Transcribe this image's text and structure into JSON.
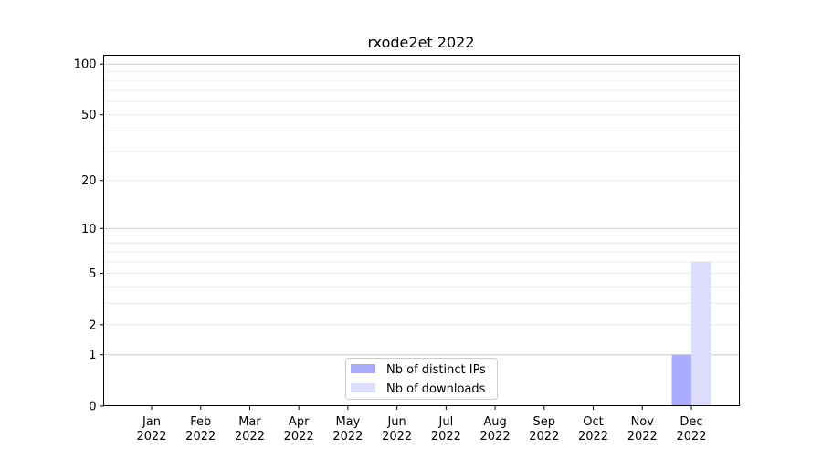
{
  "chart_data": {
    "type": "bar",
    "title": "rxode2et 2022",
    "xlabel": "",
    "ylabel": "",
    "yscale": "log(1+y)",
    "ylim": [
      0,
      113
    ],
    "yticks": [
      0,
      1,
      2,
      5,
      10,
      20,
      50,
      100
    ],
    "grid": true,
    "legend_position": "bottom-center",
    "categories": [
      "Jan\n2022",
      "Feb\n2022",
      "Mar\n2022",
      "Apr\n2022",
      "May\n2022",
      "Jun\n2022",
      "Jul\n2022",
      "Aug\n2022",
      "Sep\n2022",
      "Oct\n2022",
      "Nov\n2022",
      "Dec\n2022"
    ],
    "series": [
      {
        "name": "Nb of distinct IPs",
        "color": "#aaaaff",
        "values": [
          0,
          0,
          0,
          0,
          0,
          0,
          0,
          0,
          0,
          0,
          0,
          1
        ]
      },
      {
        "name": "Nb of downloads",
        "color": "#ddddff",
        "values": [
          0,
          0,
          0,
          0,
          0,
          0,
          0,
          0,
          0,
          0,
          0,
          6
        ]
      }
    ]
  }
}
